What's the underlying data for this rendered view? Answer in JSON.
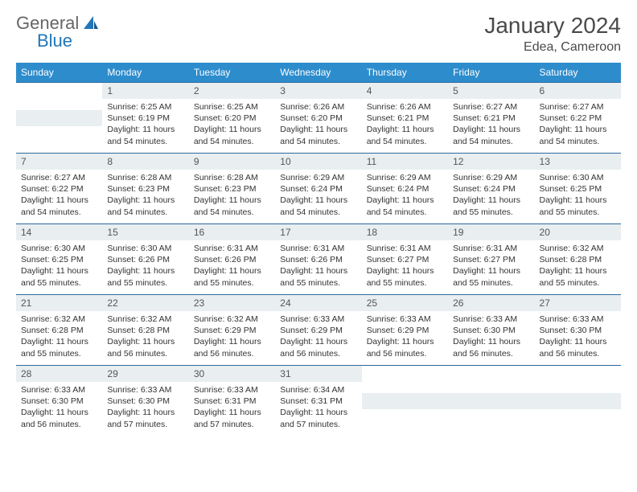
{
  "brand": {
    "text1": "General",
    "text2": "Blue"
  },
  "title": "January 2024",
  "location": "Edea, Cameroon",
  "colors": {
    "header_bg": "#2d8ccc",
    "header_text": "#ffffff",
    "daynum_bg": "#e9eef0",
    "border": "#2d6a9e",
    "brand_gray": "#666666",
    "brand_blue": "#2176b8"
  },
  "day_names": [
    "Sunday",
    "Monday",
    "Tuesday",
    "Wednesday",
    "Thursday",
    "Friday",
    "Saturday"
  ],
  "weeks": [
    [
      null,
      {
        "n": "1",
        "sr": "Sunrise: 6:25 AM",
        "ss": "Sunset: 6:19 PM",
        "d1": "Daylight: 11 hours",
        "d2": "and 54 minutes."
      },
      {
        "n": "2",
        "sr": "Sunrise: 6:25 AM",
        "ss": "Sunset: 6:20 PM",
        "d1": "Daylight: 11 hours",
        "d2": "and 54 minutes."
      },
      {
        "n": "3",
        "sr": "Sunrise: 6:26 AM",
        "ss": "Sunset: 6:20 PM",
        "d1": "Daylight: 11 hours",
        "d2": "and 54 minutes."
      },
      {
        "n": "4",
        "sr": "Sunrise: 6:26 AM",
        "ss": "Sunset: 6:21 PM",
        "d1": "Daylight: 11 hours",
        "d2": "and 54 minutes."
      },
      {
        "n": "5",
        "sr": "Sunrise: 6:27 AM",
        "ss": "Sunset: 6:21 PM",
        "d1": "Daylight: 11 hours",
        "d2": "and 54 minutes."
      },
      {
        "n": "6",
        "sr": "Sunrise: 6:27 AM",
        "ss": "Sunset: 6:22 PM",
        "d1": "Daylight: 11 hours",
        "d2": "and 54 minutes."
      }
    ],
    [
      {
        "n": "7",
        "sr": "Sunrise: 6:27 AM",
        "ss": "Sunset: 6:22 PM",
        "d1": "Daylight: 11 hours",
        "d2": "and 54 minutes."
      },
      {
        "n": "8",
        "sr": "Sunrise: 6:28 AM",
        "ss": "Sunset: 6:23 PM",
        "d1": "Daylight: 11 hours",
        "d2": "and 54 minutes."
      },
      {
        "n": "9",
        "sr": "Sunrise: 6:28 AM",
        "ss": "Sunset: 6:23 PM",
        "d1": "Daylight: 11 hours",
        "d2": "and 54 minutes."
      },
      {
        "n": "10",
        "sr": "Sunrise: 6:29 AM",
        "ss": "Sunset: 6:24 PM",
        "d1": "Daylight: 11 hours",
        "d2": "and 54 minutes."
      },
      {
        "n": "11",
        "sr": "Sunrise: 6:29 AM",
        "ss": "Sunset: 6:24 PM",
        "d1": "Daylight: 11 hours",
        "d2": "and 54 minutes."
      },
      {
        "n": "12",
        "sr": "Sunrise: 6:29 AM",
        "ss": "Sunset: 6:24 PM",
        "d1": "Daylight: 11 hours",
        "d2": "and 55 minutes."
      },
      {
        "n": "13",
        "sr": "Sunrise: 6:30 AM",
        "ss": "Sunset: 6:25 PM",
        "d1": "Daylight: 11 hours",
        "d2": "and 55 minutes."
      }
    ],
    [
      {
        "n": "14",
        "sr": "Sunrise: 6:30 AM",
        "ss": "Sunset: 6:25 PM",
        "d1": "Daylight: 11 hours",
        "d2": "and 55 minutes."
      },
      {
        "n": "15",
        "sr": "Sunrise: 6:30 AM",
        "ss": "Sunset: 6:26 PM",
        "d1": "Daylight: 11 hours",
        "d2": "and 55 minutes."
      },
      {
        "n": "16",
        "sr": "Sunrise: 6:31 AM",
        "ss": "Sunset: 6:26 PM",
        "d1": "Daylight: 11 hours",
        "d2": "and 55 minutes."
      },
      {
        "n": "17",
        "sr": "Sunrise: 6:31 AM",
        "ss": "Sunset: 6:26 PM",
        "d1": "Daylight: 11 hours",
        "d2": "and 55 minutes."
      },
      {
        "n": "18",
        "sr": "Sunrise: 6:31 AM",
        "ss": "Sunset: 6:27 PM",
        "d1": "Daylight: 11 hours",
        "d2": "and 55 minutes."
      },
      {
        "n": "19",
        "sr": "Sunrise: 6:31 AM",
        "ss": "Sunset: 6:27 PM",
        "d1": "Daylight: 11 hours",
        "d2": "and 55 minutes."
      },
      {
        "n": "20",
        "sr": "Sunrise: 6:32 AM",
        "ss": "Sunset: 6:28 PM",
        "d1": "Daylight: 11 hours",
        "d2": "and 55 minutes."
      }
    ],
    [
      {
        "n": "21",
        "sr": "Sunrise: 6:32 AM",
        "ss": "Sunset: 6:28 PM",
        "d1": "Daylight: 11 hours",
        "d2": "and 55 minutes."
      },
      {
        "n": "22",
        "sr": "Sunrise: 6:32 AM",
        "ss": "Sunset: 6:28 PM",
        "d1": "Daylight: 11 hours",
        "d2": "and 56 minutes."
      },
      {
        "n": "23",
        "sr": "Sunrise: 6:32 AM",
        "ss": "Sunset: 6:29 PM",
        "d1": "Daylight: 11 hours",
        "d2": "and 56 minutes."
      },
      {
        "n": "24",
        "sr": "Sunrise: 6:33 AM",
        "ss": "Sunset: 6:29 PM",
        "d1": "Daylight: 11 hours",
        "d2": "and 56 minutes."
      },
      {
        "n": "25",
        "sr": "Sunrise: 6:33 AM",
        "ss": "Sunset: 6:29 PM",
        "d1": "Daylight: 11 hours",
        "d2": "and 56 minutes."
      },
      {
        "n": "26",
        "sr": "Sunrise: 6:33 AM",
        "ss": "Sunset: 6:30 PM",
        "d1": "Daylight: 11 hours",
        "d2": "and 56 minutes."
      },
      {
        "n": "27",
        "sr": "Sunrise: 6:33 AM",
        "ss": "Sunset: 6:30 PM",
        "d1": "Daylight: 11 hours",
        "d2": "and 56 minutes."
      }
    ],
    [
      {
        "n": "28",
        "sr": "Sunrise: 6:33 AM",
        "ss": "Sunset: 6:30 PM",
        "d1": "Daylight: 11 hours",
        "d2": "and 56 minutes."
      },
      {
        "n": "29",
        "sr": "Sunrise: 6:33 AM",
        "ss": "Sunset: 6:30 PM",
        "d1": "Daylight: 11 hours",
        "d2": "and 57 minutes."
      },
      {
        "n": "30",
        "sr": "Sunrise: 6:33 AM",
        "ss": "Sunset: 6:31 PM",
        "d1": "Daylight: 11 hours",
        "d2": "and 57 minutes."
      },
      {
        "n": "31",
        "sr": "Sunrise: 6:34 AM",
        "ss": "Sunset: 6:31 PM",
        "d1": "Daylight: 11 hours",
        "d2": "and 57 minutes."
      },
      null,
      null,
      null
    ]
  ]
}
